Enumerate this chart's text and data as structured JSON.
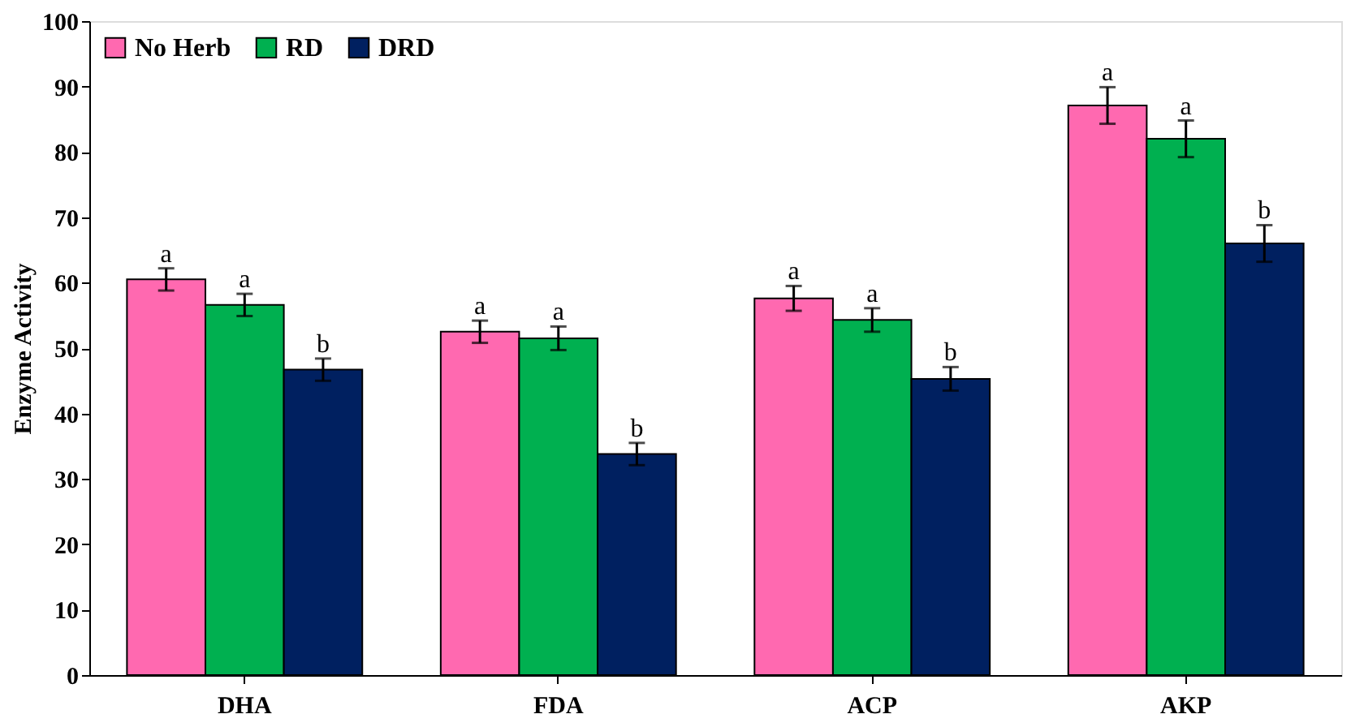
{
  "chart_data": {
    "type": "bar",
    "ylabel": "Enzyme Activity",
    "categories": [
      "DHA",
      "FDA",
      "ACP",
      "AKP"
    ],
    "series": [
      {
        "name": "No Herb",
        "color": "#ff69b0",
        "values": [
          60.5,
          52.5,
          57.6,
          87.1
        ],
        "errors": [
          1.7,
          1.7,
          1.9,
          2.8
        ],
        "value_labels": [
          "a",
          "a",
          "a",
          "a"
        ]
      },
      {
        "name": "RD",
        "color": "#00b050",
        "values": [
          56.6,
          51.5,
          54.3,
          82.0
        ],
        "errors": [
          1.7,
          1.8,
          1.8,
          2.8
        ],
        "value_labels": [
          "a",
          "a",
          "a",
          "a"
        ]
      },
      {
        "name": "DRD",
        "color": "#002060",
        "values": [
          46.7,
          33.8,
          45.3,
          66.0
        ],
        "errors": [
          1.7,
          1.7,
          1.8,
          2.8
        ],
        "value_labels": [
          "b",
          "b",
          "b",
          "b"
        ]
      }
    ],
    "ylim": [
      0,
      100
    ],
    "yticks": [
      0,
      10,
      20,
      30,
      40,
      50,
      60,
      70,
      80,
      90,
      100
    ],
    "grid": false,
    "legend": "top left"
  }
}
